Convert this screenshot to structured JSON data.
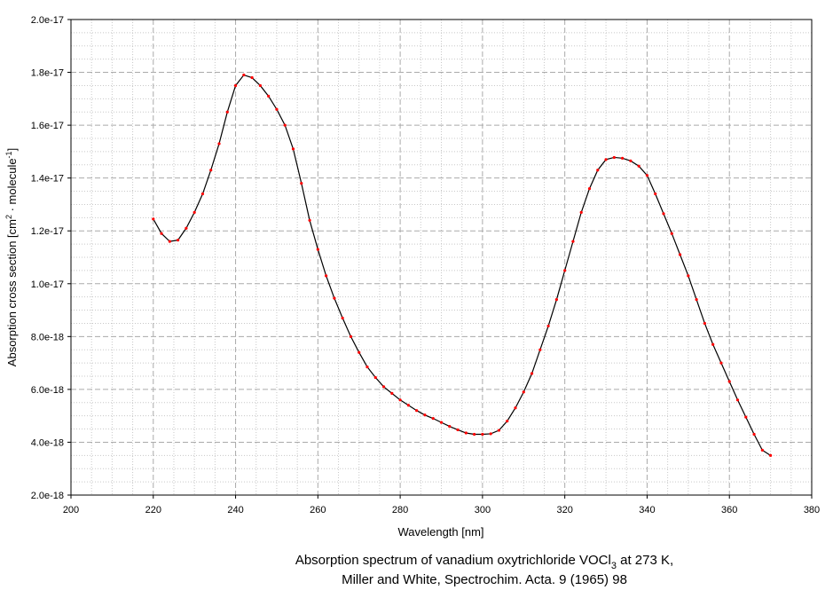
{
  "chart_data": {
    "type": "line",
    "title": [
      "Absorption spectrum of vanadium oxytrichloride VOCl",
      "3",
      " at 273 K,"
    ],
    "subtitle": "Miller and White, Spectrochim. Acta. 9 (1965) 98",
    "xlabel": "Wavelength [nm]",
    "ylabel": [
      "Absorption cross section [cm",
      "2",
      " · molecule",
      "-1",
      "]"
    ],
    "x": [
      220,
      222,
      224,
      226,
      228,
      230,
      232,
      234,
      236,
      238,
      240,
      242,
      244,
      246,
      248,
      250,
      252,
      254,
      256,
      258,
      260,
      262,
      264,
      266,
      268,
      270,
      272,
      274,
      276,
      278,
      280,
      282,
      284,
      286,
      288,
      290,
      292,
      294,
      296,
      298,
      300,
      302,
      304,
      306,
      308,
      310,
      312,
      314,
      316,
      318,
      320,
      322,
      324,
      326,
      328,
      330,
      332,
      334,
      336,
      338,
      340,
      342,
      344,
      346,
      348,
      350,
      352,
      354,
      356,
      358,
      360,
      362,
      364,
      366,
      368,
      370
    ],
    "values": [
      1.245e-17,
      1.19e-17,
      1.16e-17,
      1.165e-17,
      1.21e-17,
      1.27e-17,
      1.34e-17,
      1.43e-17,
      1.53e-17,
      1.65e-17,
      1.75e-17,
      1.79e-17,
      1.78e-17,
      1.75e-17,
      1.71e-17,
      1.66e-17,
      1.6e-17,
      1.51e-17,
      1.38e-17,
      1.24e-17,
      1.13e-17,
      1.03e-17,
      9.45e-18,
      8.7e-18,
      8e-18,
      7.4e-18,
      6.85e-18,
      6.45e-18,
      6.1e-18,
      5.85e-18,
      5.6e-18,
      5.4e-18,
      5.2e-18,
      5.03e-18,
      4.9e-18,
      4.75e-18,
      4.6e-18,
      4.47e-18,
      4.35e-18,
      4.3e-18,
      4.3e-18,
      4.32e-18,
      4.45e-18,
      4.8e-18,
      5.3e-18,
      5.9e-18,
      6.6e-18,
      7.5e-18,
      8.4e-18,
      9.4e-18,
      1.05e-17,
      1.16e-17,
      1.27e-17,
      1.36e-17,
      1.43e-17,
      1.47e-17,
      1.478e-17,
      1.475e-17,
      1.465e-17,
      1.445e-17,
      1.41e-17,
      1.34e-17,
      1.265e-17,
      1.19e-17,
      1.11e-17,
      1.03e-17,
      9.4e-18,
      8.5e-18,
      7.7e-18,
      7e-18,
      6.3e-18,
      5.6e-18,
      4.95e-18,
      4.3e-18,
      3.7e-18,
      3.5e-18
    ],
    "color": "#000000",
    "marker_color": "#ff0000",
    "xlim": [
      200,
      380
    ],
    "ylim": [
      2e-18,
      2e-17
    ],
    "xticks": [
      200,
      220,
      240,
      260,
      280,
      300,
      320,
      340,
      360,
      380
    ],
    "yticks": [
      {
        "value": 2e-18,
        "label": "2.0e-18"
      },
      {
        "value": 4e-18,
        "label": "4.0e-18"
      },
      {
        "value": 6e-18,
        "label": "6.0e-18"
      },
      {
        "value": 8e-18,
        "label": "8.0e-18"
      },
      {
        "value": 1e-17,
        "label": "1.0e-17"
      },
      {
        "value": 1.2e-17,
        "label": "1.2e-17"
      },
      {
        "value": 1.4e-17,
        "label": "1.4e-17"
      },
      {
        "value": 1.6e-17,
        "label": "1.6e-17"
      },
      {
        "value": 1.8e-17,
        "label": "1.8e-17"
      },
      {
        "value": 2e-17,
        "label": "2.0e-17"
      }
    ],
    "grid": true,
    "minor_grid": true
  }
}
